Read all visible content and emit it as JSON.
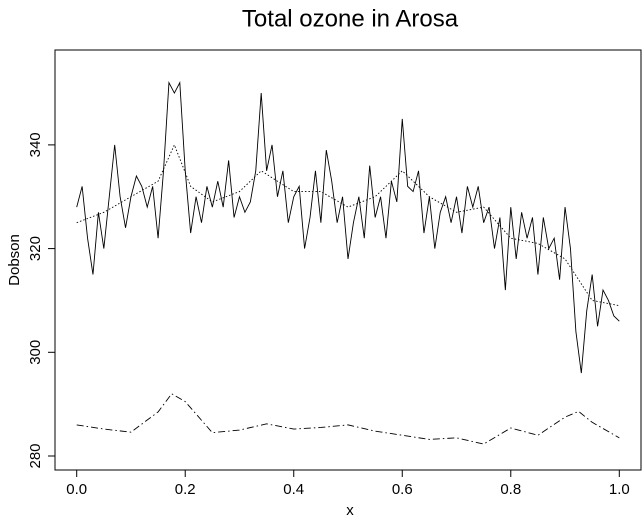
{
  "chart_data": {
    "type": "line",
    "title": "Total ozone in Arosa",
    "x_label": "x",
    "y_label": "Dobson",
    "xlim": [
      -0.04,
      1.04
    ],
    "ylim": [
      277.3,
      358.3
    ],
    "xticks": [
      {
        "value": 0,
        "label": "0.0"
      },
      0.2,
      0.4,
      0.6,
      0.8,
      {
        "value": 1,
        "label": "1.0"
      }
    ],
    "yticks": [
      280,
      300,
      320,
      340
    ],
    "series": [
      {
        "color": "#000000",
        "linestyle": "solid",
        "x": [
          0,
          0.01,
          0.02,
          0.03,
          0.04,
          0.05,
          0.06,
          0.07,
          0.08,
          0.09,
          0.1,
          0.11,
          0.12,
          0.13,
          0.14,
          0.15,
          0.16,
          0.17,
          0.18,
          0.19,
          0.2,
          0.21,
          0.22,
          0.23,
          0.24,
          0.25,
          0.26,
          0.27,
          0.28,
          0.29,
          0.3,
          0.31,
          0.32,
          0.33,
          0.34,
          0.35,
          0.36,
          0.37,
          0.38,
          0.39,
          0.4,
          0.41,
          0.42,
          0.43,
          0.44,
          0.45,
          0.46,
          0.47,
          0.48,
          0.49,
          0.5,
          0.51,
          0.52,
          0.53,
          0.54,
          0.55,
          0.56,
          0.57,
          0.58,
          0.59,
          0.6,
          0.61,
          0.62,
          0.63,
          0.64,
          0.65,
          0.66,
          0.67,
          0.68,
          0.69,
          0.7,
          0.71,
          0.72,
          0.73,
          0.74,
          0.75,
          0.76,
          0.77,
          0.78,
          0.79,
          0.8,
          0.81,
          0.82,
          0.83,
          0.84,
          0.85,
          0.86,
          0.87,
          0.88,
          0.89,
          0.9,
          0.91,
          0.92,
          0.93,
          0.94,
          0.95,
          0.96,
          0.97,
          0.98,
          0.99,
          1
        ],
        "values": [
          328,
          332,
          322,
          315,
          327,
          320,
          330,
          340,
          330,
          324,
          330,
          334,
          332,
          328,
          332,
          322,
          335,
          352,
          350,
          352,
          335,
          323,
          330,
          325,
          332,
          328,
          333,
          328,
          337,
          326,
          330,
          327,
          329,
          335,
          350,
          335,
          340,
          330,
          335,
          325,
          330,
          332,
          320,
          326,
          335,
          325,
          339,
          333,
          325,
          330,
          318,
          325,
          330,
          322,
          336,
          326,
          330,
          322,
          333,
          329,
          345,
          332,
          331,
          335,
          323,
          330,
          320,
          327,
          330,
          325,
          330,
          323,
          332,
          328,
          332,
          325,
          328,
          320,
          326,
          312,
          328,
          318,
          327,
          322,
          326,
          315,
          326,
          320,
          322,
          314,
          328,
          320,
          304,
          296,
          308,
          315,
          305,
          312,
          310,
          307,
          306
        ]
      },
      {
        "color": "#000000",
        "linestyle": "dotted",
        "x": [
          0,
          0.05,
          0.1,
          0.15,
          0.18,
          0.21,
          0.25,
          0.3,
          0.34,
          0.4,
          0.45,
          0.5,
          0.55,
          0.6,
          0.65,
          0.7,
          0.75,
          0.8,
          0.85,
          0.9,
          0.95,
          1
        ],
        "values": [
          325,
          327,
          330,
          333,
          340,
          332,
          329,
          331,
          335,
          331,
          331,
          328,
          330,
          335,
          330,
          327,
          328,
          322,
          321,
          318,
          310,
          309
        ]
      },
      {
        "color": "#000000",
        "linestyle": "dashdot",
        "x": [
          0,
          0.05,
          0.1,
          0.15,
          0.175,
          0.2,
          0.25,
          0.3,
          0.35,
          0.4,
          0.45,
          0.5,
          0.55,
          0.6,
          0.65,
          0.7,
          0.75,
          0.8,
          0.85,
          0.9,
          0.925,
          0.95,
          1
        ],
        "values": [
          286,
          285.2,
          284.6,
          288.5,
          292,
          290.5,
          284.5,
          285,
          286.2,
          285.2,
          285.5,
          286,
          284.8,
          284,
          283.2,
          283.5,
          282.3,
          285.4,
          284,
          287.5,
          288.6,
          286.5,
          283.5
        ]
      }
    ]
  }
}
